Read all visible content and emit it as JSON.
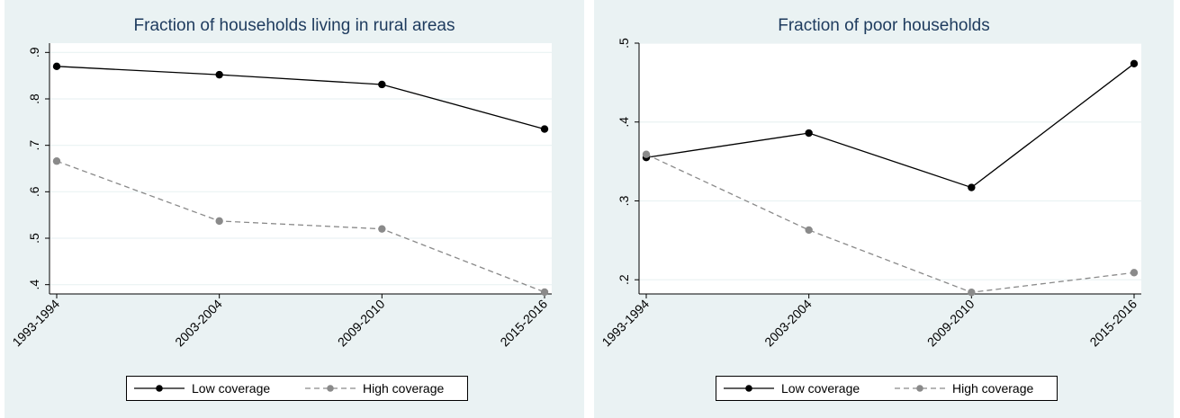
{
  "colors": {
    "background": "#eaf2f3",
    "plot": "#ffffff",
    "title": "#1e3b5e",
    "low": "#000000",
    "high": "#8a8a8a",
    "grid": "#eaf2f3"
  },
  "chart_data": [
    {
      "type": "line",
      "title": "Fraction of households living in rural areas",
      "xlabel": "",
      "ylabel": "",
      "categories": [
        "1993-1994",
        "2003-2004",
        "2009-2010",
        "2015-2016"
      ],
      "ylim": [
        0.38,
        0.92
      ],
      "yticks": [
        0.4,
        0.5,
        0.6,
        0.7,
        0.8,
        0.9
      ],
      "ytick_labels": [
        ".4",
        ".5",
        ".6",
        ".7",
        ".8",
        ".9"
      ],
      "grid": true,
      "legend": "bottom",
      "series": [
        {
          "name": "Low coverage",
          "style": "solid",
          "values": [
            0.87,
            0.852,
            0.831,
            0.735
          ]
        },
        {
          "name": "High coverage",
          "style": "dashed",
          "values": [
            0.666,
            0.537,
            0.52,
            0.384
          ]
        }
      ]
    },
    {
      "type": "line",
      "title": "Fraction of poor households",
      "xlabel": "",
      "ylabel": "",
      "categories": [
        "1993-1994",
        "2003-2004",
        "2009-2010",
        "2015-2016"
      ],
      "ylim": [
        0.182,
        0.5
      ],
      "yticks": [
        0.2,
        0.3,
        0.4,
        0.5
      ],
      "ytick_labels": [
        ".2",
        ".3",
        ".4",
        ".5"
      ],
      "grid": true,
      "legend": "bottom",
      "series": [
        {
          "name": "Low coverage",
          "style": "solid",
          "values": [
            0.355,
            0.386,
            0.317,
            0.474
          ]
        },
        {
          "name": "High coverage",
          "style": "dashed",
          "values": [
            0.359,
            0.263,
            0.184,
            0.209
          ]
        }
      ]
    }
  ],
  "legend": {
    "low_label": "Low coverage",
    "high_label": "High coverage"
  }
}
